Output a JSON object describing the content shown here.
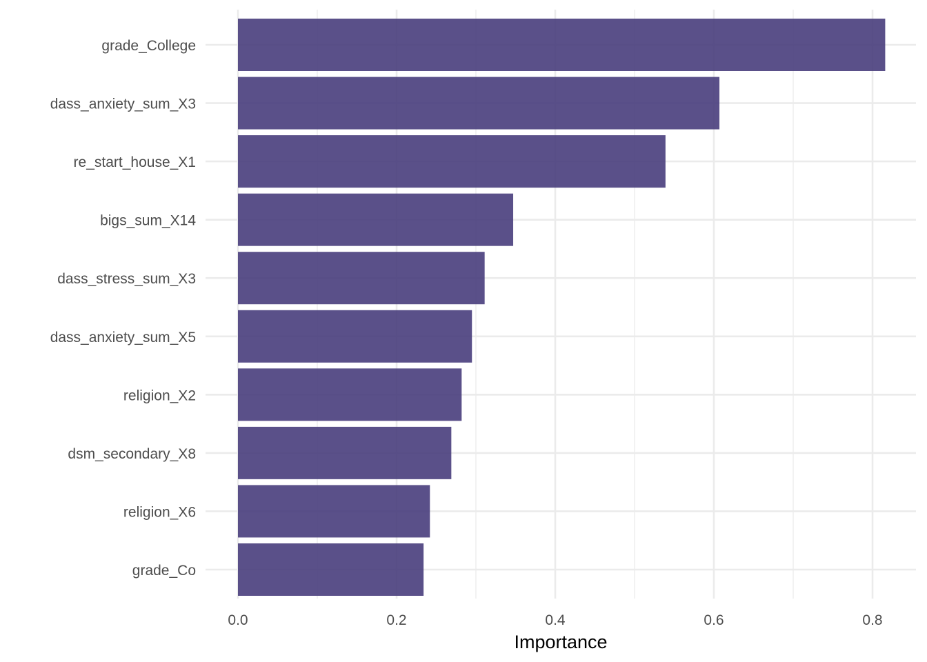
{
  "chart_data": {
    "type": "bar",
    "orientation": "horizontal",
    "categories": [
      "grade_College",
      "dass_anxiety_sum_X3",
      "re_start_house_X1",
      "bigs_sum_X14",
      "dass_stress_sum_X3",
      "dass_anxiety_sum_X5",
      "religion_X2",
      "dsm_secondary_X8",
      "religion_X6",
      "grade_Co"
    ],
    "values": [
      0.816,
      0.607,
      0.539,
      0.347,
      0.311,
      0.295,
      0.282,
      0.269,
      0.242,
      0.234
    ],
    "xlabel": "Importance",
    "ylabel": "",
    "xlim": [
      0,
      0.85
    ],
    "x_ticks": [
      "0.0",
      "0.2",
      "0.4",
      "0.6",
      "0.8"
    ],
    "x_tick_values": [
      0,
      0.2,
      0.4,
      0.6,
      0.8
    ],
    "grid": true,
    "bar_color": "#483d7c",
    "grid_color": "#ebebeb"
  }
}
